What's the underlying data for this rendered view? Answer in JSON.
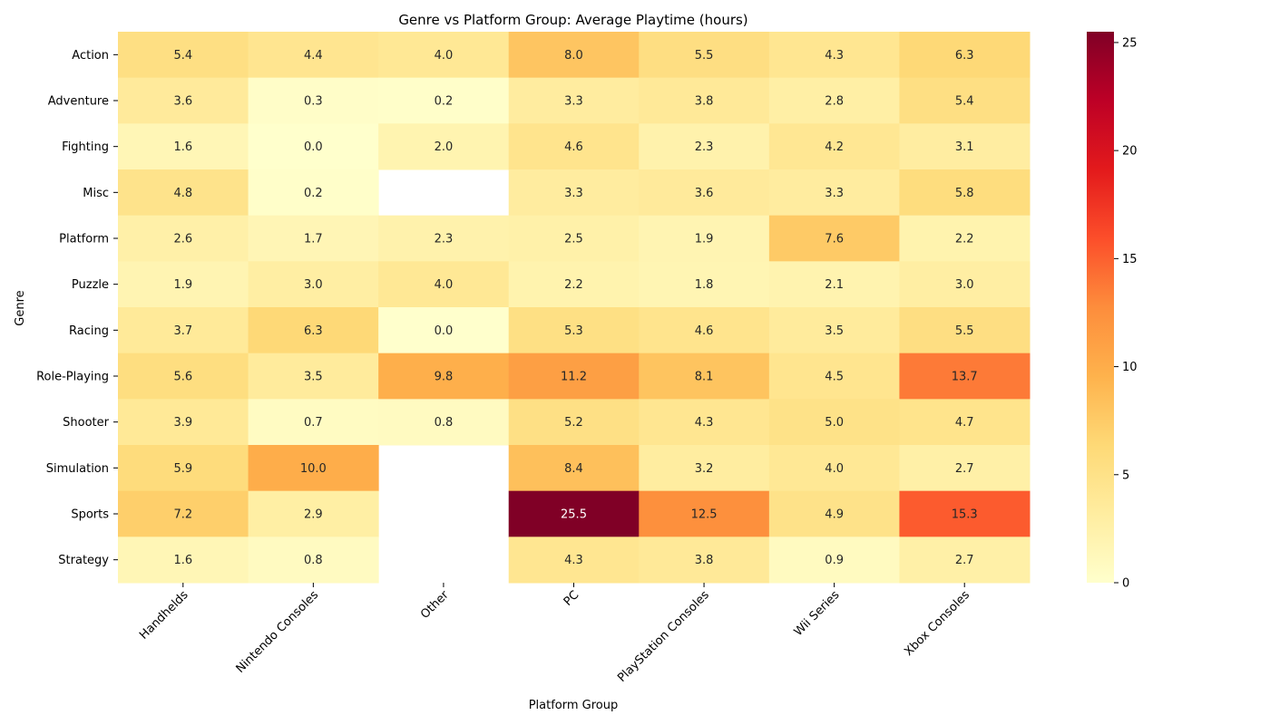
{
  "chart_data": {
    "type": "heatmap",
    "title": "Genre vs Platform Group: Average Playtime (hours)",
    "xlabel": "Platform Group",
    "ylabel": "Genre",
    "x_categories": [
      "Handhelds",
      "Nintendo Consoles",
      "Other",
      "PC",
      "PlayStation Consoles",
      "Wii Series",
      "Xbox Consoles"
    ],
    "y_categories": [
      "Action",
      "Adventure",
      "Fighting",
      "Misc",
      "Platform",
      "Puzzle",
      "Racing",
      "Role-Playing",
      "Shooter",
      "Simulation",
      "Sports",
      "Strategy"
    ],
    "values": [
      [
        5.4,
        4.4,
        4.0,
        8.0,
        5.5,
        4.3,
        6.3
      ],
      [
        3.6,
        0.3,
        0.2,
        3.3,
        3.8,
        2.8,
        5.4
      ],
      [
        1.6,
        0.0,
        2.0,
        4.6,
        2.3,
        4.2,
        3.1
      ],
      [
        4.8,
        0.2,
        null,
        3.3,
        3.6,
        3.3,
        5.8
      ],
      [
        2.6,
        1.7,
        2.3,
        2.5,
        1.9,
        7.6,
        2.2
      ],
      [
        1.9,
        3.0,
        4.0,
        2.2,
        1.8,
        2.1,
        3.0
      ],
      [
        3.7,
        6.3,
        0.0,
        5.3,
        4.6,
        3.5,
        5.5
      ],
      [
        5.6,
        3.5,
        9.8,
        11.2,
        8.1,
        4.5,
        13.7
      ],
      [
        3.9,
        0.7,
        0.8,
        5.2,
        4.3,
        5.0,
        4.7
      ],
      [
        5.9,
        10.0,
        null,
        8.4,
        3.2,
        4.0,
        2.7
      ],
      [
        7.2,
        2.9,
        null,
        25.5,
        12.5,
        4.9,
        15.3
      ],
      [
        1.6,
        0.8,
        null,
        4.3,
        3.8,
        0.9,
        2.7
      ]
    ],
    "value_format": "0.0",
    "colormap": "YlOrRd",
    "color_range": [
      0,
      25.5
    ],
    "colorbar_ticks": [
      0,
      5,
      10,
      15,
      20,
      25
    ],
    "missing_cells": "blank",
    "grid": false
  }
}
